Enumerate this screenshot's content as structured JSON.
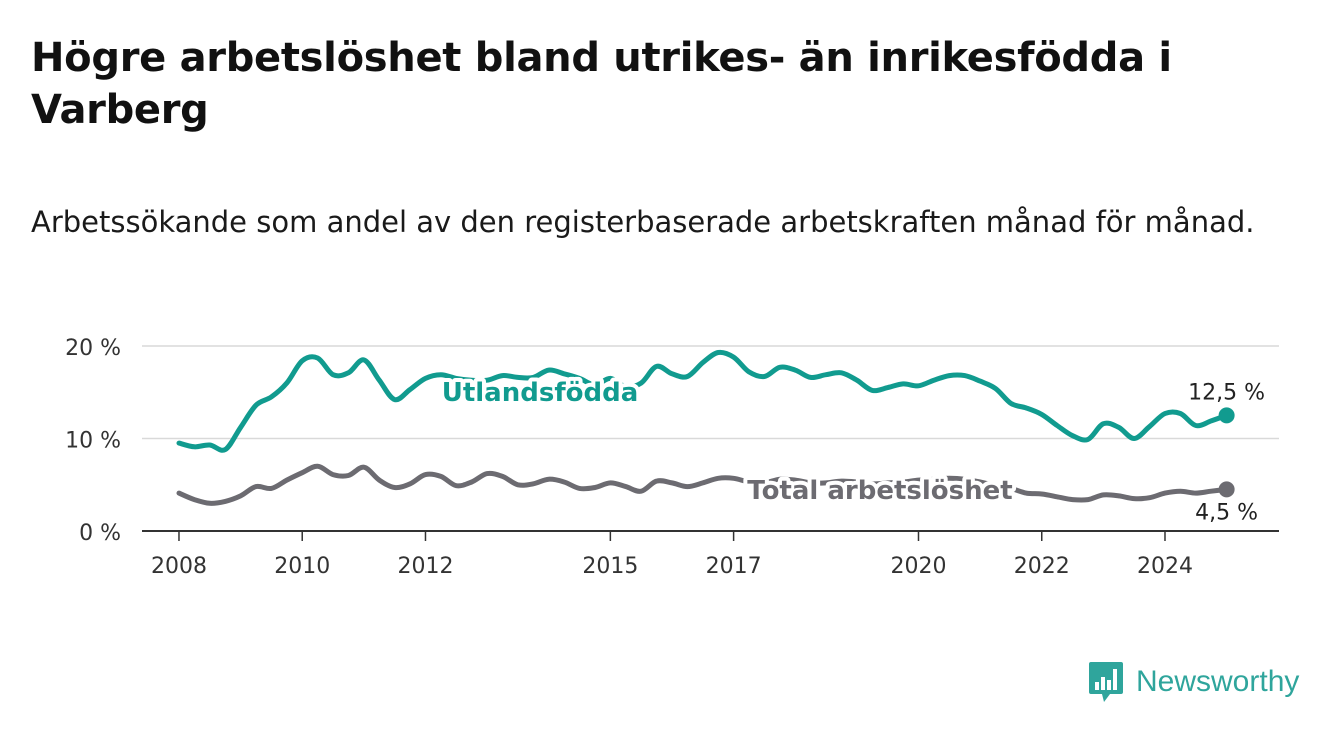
{
  "title": "Högre arbetslöshet bland utrikes- än inrikesfödda i Varberg",
  "subtitle": "Arbetssökande som andel av den registerbaserade arbetskraften månad för månad.",
  "brand": {
    "name": "Newsworthy"
  },
  "colors": {
    "foreign": "#119b8f",
    "total": "#6c6b71",
    "axis": "#333333",
    "grid": "#d9d9d9",
    "brand": "#2fa59c"
  },
  "chart_data": {
    "type": "line",
    "yticks": [
      "0 %",
      "10 %",
      "20 %"
    ],
    "ytick_values": [
      0,
      10,
      20
    ],
    "ylim": [
      0,
      20
    ],
    "xlim": [
      2007.4,
      2025.85
    ],
    "xticks": [
      "2008",
      "2010",
      "2012",
      "2015",
      "2017",
      "2020",
      "2022",
      "2024"
    ],
    "xtick_values": [
      2008,
      2010,
      2012,
      2015,
      2017,
      2020,
      2022,
      2024
    ],
    "grid": true,
    "series": [
      {
        "name": "Utlandsfödda",
        "end_label": "12,5 %",
        "x": [
          2008.0,
          2008.25,
          2008.5,
          2008.75,
          2009.0,
          2009.25,
          2009.5,
          2009.75,
          2010.0,
          2010.25,
          2010.5,
          2010.75,
          2011.0,
          2011.25,
          2011.5,
          2011.75,
          2012.0,
          2012.25,
          2012.5,
          2012.75,
          2013.0,
          2013.25,
          2013.5,
          2013.75,
          2014.0,
          2014.25,
          2014.5,
          2014.75,
          2015.0,
          2015.25,
          2015.5,
          2015.75,
          2016.0,
          2016.25,
          2016.5,
          2016.75,
          2017.0,
          2017.25,
          2017.5,
          2017.75,
          2018.0,
          2018.25,
          2018.5,
          2018.75,
          2019.0,
          2019.25,
          2019.5,
          2019.75,
          2020.0,
          2020.25,
          2020.5,
          2020.75,
          2021.0,
          2021.25,
          2021.5,
          2021.75,
          2022.0,
          2022.25,
          2022.5,
          2022.75,
          2023.0,
          2023.25,
          2023.5,
          2023.75,
          2024.0,
          2024.25,
          2024.5,
          2024.75,
          2025.0
        ],
        "values": [
          9.5,
          9.1,
          9.3,
          8.8,
          11.2,
          13.6,
          14.5,
          16.0,
          18.4,
          18.7,
          16.9,
          17.1,
          18.5,
          16.3,
          14.2,
          15.3,
          16.5,
          16.9,
          16.5,
          16.3,
          16.3,
          16.8,
          16.6,
          16.6,
          17.4,
          17.0,
          16.5,
          15.8,
          16.5,
          15.6,
          16.0,
          17.8,
          17.0,
          16.7,
          18.2,
          19.3,
          18.8,
          17.2,
          16.7,
          17.7,
          17.4,
          16.6,
          16.9,
          17.1,
          16.3,
          15.2,
          15.5,
          15.9,
          15.7,
          16.3,
          16.8,
          16.8,
          16.2,
          15.4,
          13.8,
          13.3,
          12.6,
          11.4,
          10.3,
          9.9,
          11.6,
          11.2,
          10.0,
          11.3,
          12.7,
          12.7,
          11.4,
          11.9,
          12.5
        ]
      },
      {
        "name": "Total arbetslöshet",
        "end_label": "4,5 %",
        "x": [
          2008.0,
          2008.25,
          2008.5,
          2008.75,
          2009.0,
          2009.25,
          2009.5,
          2009.75,
          2010.0,
          2010.25,
          2010.5,
          2010.75,
          2011.0,
          2011.25,
          2011.5,
          2011.75,
          2012.0,
          2012.25,
          2012.5,
          2012.75,
          2013.0,
          2013.25,
          2013.5,
          2013.75,
          2014.0,
          2014.25,
          2014.5,
          2014.75,
          2015.0,
          2015.25,
          2015.5,
          2015.75,
          2016.0,
          2016.25,
          2016.5,
          2016.75,
          2017.0,
          2017.25,
          2017.5,
          2017.75,
          2018.0,
          2018.25,
          2018.5,
          2018.75,
          2019.0,
          2019.25,
          2019.5,
          2019.75,
          2020.0,
          2020.25,
          2020.5,
          2020.75,
          2021.0,
          2021.25,
          2021.5,
          2021.75,
          2022.0,
          2022.25,
          2022.5,
          2022.75,
          2023.0,
          2023.25,
          2023.5,
          2023.75,
          2024.0,
          2024.25,
          2024.5,
          2024.75,
          2025.0
        ],
        "values": [
          4.1,
          3.4,
          3.0,
          3.2,
          3.8,
          4.8,
          4.6,
          5.5,
          6.3,
          7.0,
          6.1,
          6.0,
          6.9,
          5.5,
          4.7,
          5.1,
          6.1,
          5.9,
          4.9,
          5.3,
          6.2,
          5.9,
          5.0,
          5.1,
          5.6,
          5.3,
          4.6,
          4.7,
          5.2,
          4.8,
          4.3,
          5.4,
          5.2,
          4.8,
          5.2,
          5.7,
          5.7,
          5.3,
          5.2,
          5.6,
          5.5,
          5.2,
          5.2,
          5.4,
          5.3,
          5.1,
          5.2,
          5.3,
          5.5,
          5.6,
          5.7,
          5.6,
          5.3,
          4.9,
          4.6,
          4.1,
          4.0,
          3.7,
          3.4,
          3.4,
          3.9,
          3.8,
          3.5,
          3.6,
          4.1,
          4.3,
          4.1,
          4.3,
          4.5
        ]
      }
    ]
  }
}
